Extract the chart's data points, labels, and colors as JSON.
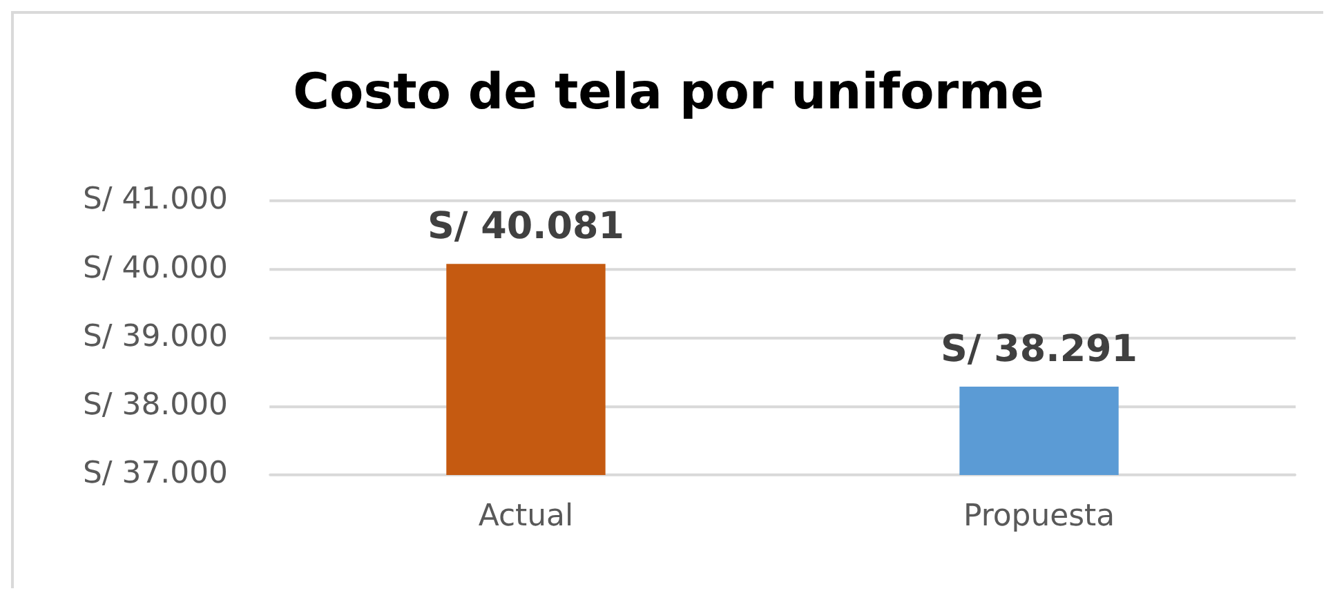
{
  "chart_data": {
    "type": "bar",
    "title": "Costo de tela por uniforme",
    "categories": [
      "Actual",
      "Propuesta"
    ],
    "values": [
      40081,
      38291
    ],
    "colors": [
      "#c55a11",
      "#5b9bd5"
    ],
    "value_labels": [
      "S/ 40.081",
      "S/ 38.291"
    ],
    "ylim": [
      37000,
      41000
    ],
    "yticks": [
      {
        "value": 37000,
        "label": "S/ 37.000"
      },
      {
        "value": 38000,
        "label": "S/ 38.000"
      },
      {
        "value": 39000,
        "label": "S/ 39.000"
      },
      {
        "value": 40000,
        "label": "S/ 40.000"
      },
      {
        "value": 41000,
        "label": "S/ 41.000"
      }
    ],
    "grid": "y",
    "legend": false
  }
}
